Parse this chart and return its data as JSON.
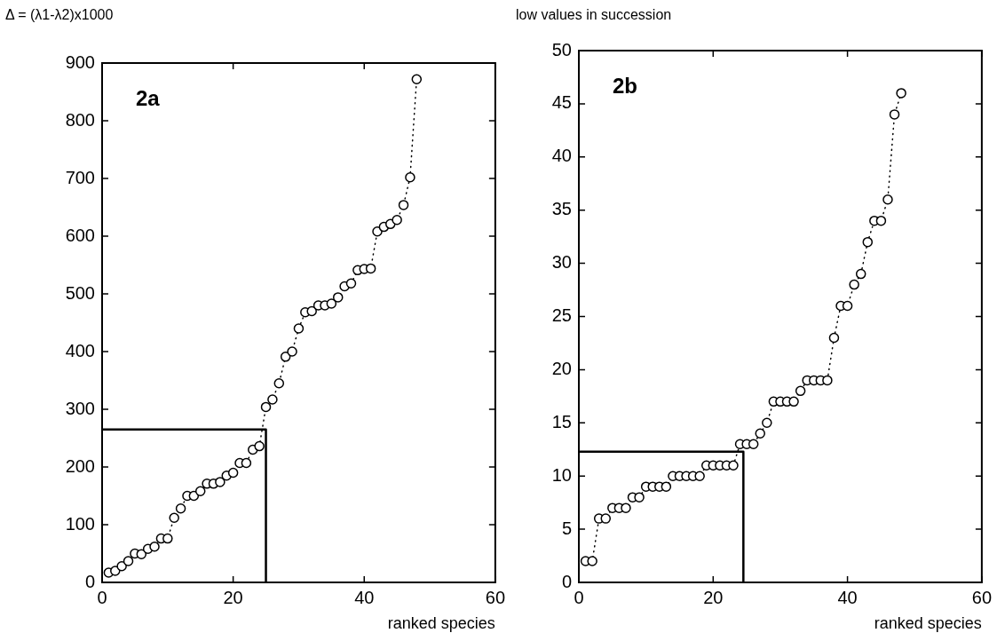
{
  "chart_data": [
    {
      "type": "line",
      "ylabel": "Δ = (λ1-λ2)x1000",
      "xlabel": "ranked species",
      "annotations": [
        "2a"
      ],
      "xlim": [
        0,
        60
      ],
      "xticks": [
        0,
        20,
        40,
        60
      ],
      "ylim": [
        0,
        900
      ],
      "yticks": [
        0,
        100,
        200,
        300,
        400,
        500,
        600,
        700,
        800,
        900
      ],
      "grid": false,
      "legend": false,
      "series": [
        {
          "color": "#000000",
          "marker": "circle",
          "line_style": "dotted",
          "x": [
            1,
            2,
            3,
            4,
            5,
            6,
            7,
            8,
            9,
            10,
            11,
            12,
            13,
            14,
            15,
            16,
            17,
            18,
            19,
            20,
            21,
            22,
            23,
            24,
            25,
            26,
            27,
            28,
            29,
            30,
            31,
            32,
            33,
            34,
            35,
            36,
            37,
            38,
            39,
            40,
            41,
            42,
            43,
            44,
            45,
            46,
            47,
            48
          ],
          "values": [
            17,
            20,
            28,
            37,
            50,
            49,
            58,
            62,
            76,
            76,
            112,
            128,
            150,
            150,
            158,
            171,
            171,
            174,
            185,
            190,
            207,
            207,
            230,
            236,
            304,
            317,
            345,
            391,
            400,
            440,
            468,
            470,
            480,
            480,
            483,
            494,
            513,
            518,
            541,
            543,
            544,
            608,
            616,
            621,
            628,
            654,
            702,
            872
          ]
        },
        {
          "type": "line",
          "color": "#000000",
          "marker": "none",
          "line_style": "solid",
          "x": [
            0,
            25,
            25
          ],
          "values": [
            265,
            265,
            0
          ]
        }
      ]
    },
    {
      "type": "line",
      "ylabel": "low values in succession",
      "xlabel": "ranked species",
      "annotations": [
        "2b"
      ],
      "xlim": [
        0,
        60
      ],
      "xticks": [
        0,
        20,
        40,
        60
      ],
      "ylim": [
        0,
        50
      ],
      "yticks": [
        0,
        5,
        10,
        15,
        20,
        25,
        30,
        35,
        40,
        45,
        50
      ],
      "grid": false,
      "legend": false,
      "series": [
        {
          "color": "#000000",
          "marker": "circle",
          "line_style": "dotted",
          "x": [
            1,
            2,
            3,
            4,
            5,
            6,
            7,
            8,
            9,
            10,
            11,
            12,
            13,
            14,
            15,
            16,
            17,
            18,
            19,
            20,
            21,
            22,
            23,
            24,
            25,
            26,
            27,
            28,
            29,
            30,
            31,
            32,
            33,
            34,
            35,
            36,
            37,
            38,
            39,
            40,
            41,
            42,
            43,
            44,
            45,
            46,
            47,
            48
          ],
          "values": [
            2,
            2,
            6,
            6,
            7,
            7,
            7,
            8,
            8,
            9,
            9,
            9,
            9,
            10,
            10,
            10,
            10,
            10,
            11,
            11,
            11,
            11,
            11,
            13,
            13,
            13,
            14,
            15,
            17,
            17,
            17,
            17,
            18,
            19,
            19,
            19,
            19,
            23,
            26,
            26,
            28,
            29,
            32,
            34,
            34,
            36,
            44,
            46
          ]
        },
        {
          "type": "line",
          "color": "#000000",
          "marker": "none",
          "line_style": "solid",
          "x": [
            0,
            24.5,
            24.5
          ],
          "values": [
            12.3,
            12.3,
            0
          ]
        }
      ]
    }
  ]
}
